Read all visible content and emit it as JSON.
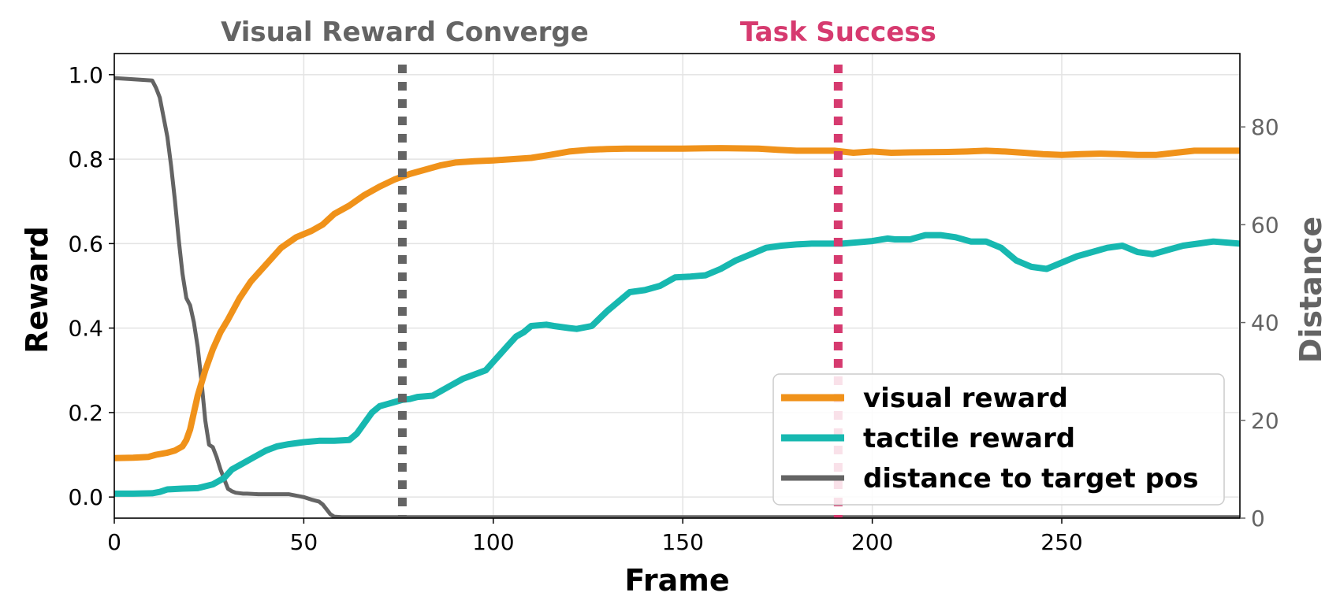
{
  "chart_data": {
    "type": "line",
    "xlabel": "Frame",
    "ylabel": "Reward",
    "y2label": "Distance",
    "xlim": [
      0,
      297
    ],
    "ylim": [
      -0.05,
      1.05
    ],
    "y2lim": [
      0,
      95
    ],
    "xticks": [
      0,
      50,
      100,
      150,
      200,
      250
    ],
    "yticks": [
      0.0,
      0.2,
      0.4,
      0.6,
      0.8,
      1.0
    ],
    "y2ticks": [
      0,
      20,
      40,
      60,
      80
    ],
    "grid": true,
    "legend_position": "lower-right",
    "colors": {
      "visual": "#f0921a",
      "tactile": "#17b8b0",
      "distance": "#646464",
      "converge": "#646464",
      "success": "#d63a6f"
    },
    "events": [
      {
        "x": 76,
        "label": "Visual Reward Converge",
        "color": "#646464"
      },
      {
        "x": 191,
        "label": "Task Success",
        "color": "#d63a6f"
      }
    ],
    "series": [
      {
        "name": "visual reward",
        "axis": "left",
        "color": "#f0921a",
        "x": [
          0,
          5,
          9,
          11,
          14,
          16,
          18,
          19,
          20,
          21,
          22,
          24,
          26,
          28,
          30,
          33,
          36,
          40,
          44,
          48,
          52,
          55,
          58,
          62,
          66,
          70,
          74,
          78,
          82,
          86,
          90,
          95,
          100,
          105,
          110,
          115,
          120,
          125,
          130,
          135,
          140,
          150,
          160,
          170,
          175,
          180,
          185,
          190,
          195,
          200,
          205,
          210,
          220,
          225,
          230,
          235,
          240,
          245,
          250,
          255,
          260,
          265,
          270,
          275,
          280,
          285,
          290,
          297
        ],
        "y": [
          0.092,
          0.093,
          0.095,
          0.1,
          0.105,
          0.11,
          0.12,
          0.135,
          0.16,
          0.2,
          0.24,
          0.3,
          0.35,
          0.39,
          0.42,
          0.47,
          0.51,
          0.55,
          0.59,
          0.615,
          0.63,
          0.645,
          0.67,
          0.69,
          0.715,
          0.735,
          0.752,
          0.765,
          0.775,
          0.785,
          0.792,
          0.795,
          0.797,
          0.8,
          0.803,
          0.81,
          0.818,
          0.822,
          0.824,
          0.825,
          0.825,
          0.825,
          0.826,
          0.825,
          0.822,
          0.82,
          0.82,
          0.82,
          0.815,
          0.818,
          0.815,
          0.816,
          0.817,
          0.818,
          0.82,
          0.818,
          0.815,
          0.812,
          0.81,
          0.812,
          0.813,
          0.812,
          0.81,
          0.81,
          0.815,
          0.82,
          0.82,
          0.82
        ]
      },
      {
        "name": "tactile reward",
        "axis": "left",
        "color": "#17b8b0",
        "x": [
          0,
          5,
          10,
          12,
          14,
          18,
          22,
          26,
          29,
          31,
          34,
          37,
          40,
          43,
          46,
          50,
          54,
          58,
          62,
          64,
          66,
          68,
          70,
          72,
          74,
          76,
          78,
          80,
          84,
          88,
          92,
          95,
          98,
          100,
          104,
          106,
          108,
          110,
          114,
          116,
          120,
          122,
          126,
          130,
          134,
          136,
          140,
          144,
          148,
          152,
          156,
          160,
          164,
          168,
          172,
          176,
          180,
          184,
          188,
          192,
          196,
          200,
          204,
          206,
          210,
          214,
          218,
          222,
          226,
          230,
          234,
          238,
          242,
          246,
          250,
          254,
          258,
          262,
          266,
          270,
          274,
          278,
          282,
          286,
          290,
          297
        ],
        "y": [
          0.008,
          0.008,
          0.009,
          0.012,
          0.018,
          0.02,
          0.021,
          0.03,
          0.045,
          0.065,
          0.08,
          0.095,
          0.11,
          0.12,
          0.125,
          0.13,
          0.133,
          0.133,
          0.135,
          0.15,
          0.175,
          0.2,
          0.215,
          0.22,
          0.225,
          0.23,
          0.232,
          0.237,
          0.24,
          0.26,
          0.28,
          0.29,
          0.3,
          0.32,
          0.36,
          0.38,
          0.39,
          0.405,
          0.408,
          0.405,
          0.4,
          0.398,
          0.405,
          0.44,
          0.47,
          0.485,
          0.49,
          0.5,
          0.52,
          0.522,
          0.525,
          0.54,
          0.56,
          0.575,
          0.59,
          0.595,
          0.598,
          0.6,
          0.6,
          0.6,
          0.603,
          0.606,
          0.612,
          0.61,
          0.61,
          0.62,
          0.62,
          0.615,
          0.605,
          0.605,
          0.59,
          0.56,
          0.545,
          0.54,
          0.555,
          0.57,
          0.58,
          0.59,
          0.595,
          0.58,
          0.575,
          0.585,
          0.595,
          0.6,
          0.605,
          0.6
        ]
      },
      {
        "name": "distance to target pos",
        "axis": "right",
        "color": "#646464",
        "x": [
          0,
          10,
          11,
          12,
          13,
          14,
          15,
          16,
          17,
          18,
          19,
          20,
          21,
          22,
          23,
          24,
          25,
          26,
          27,
          28,
          29,
          30,
          31,
          32,
          33,
          34,
          35,
          38,
          42,
          46,
          48,
          50,
          52,
          54,
          55,
          56,
          57,
          58,
          60,
          297
        ],
        "y": [
          90,
          89.5,
          88,
          86,
          82,
          78,
          72,
          65,
          57,
          50,
          45,
          43.5,
          40,
          35,
          28,
          20,
          15,
          14.5,
          12.5,
          10,
          8,
          6,
          5.5,
          5.2,
          5.1,
          5.0,
          5.0,
          4.9,
          4.9,
          4.9,
          4.6,
          4.3,
          3.8,
          3.4,
          2.8,
          1.8,
          0.8,
          0.3,
          0.2,
          0.2
        ]
      }
    ]
  }
}
